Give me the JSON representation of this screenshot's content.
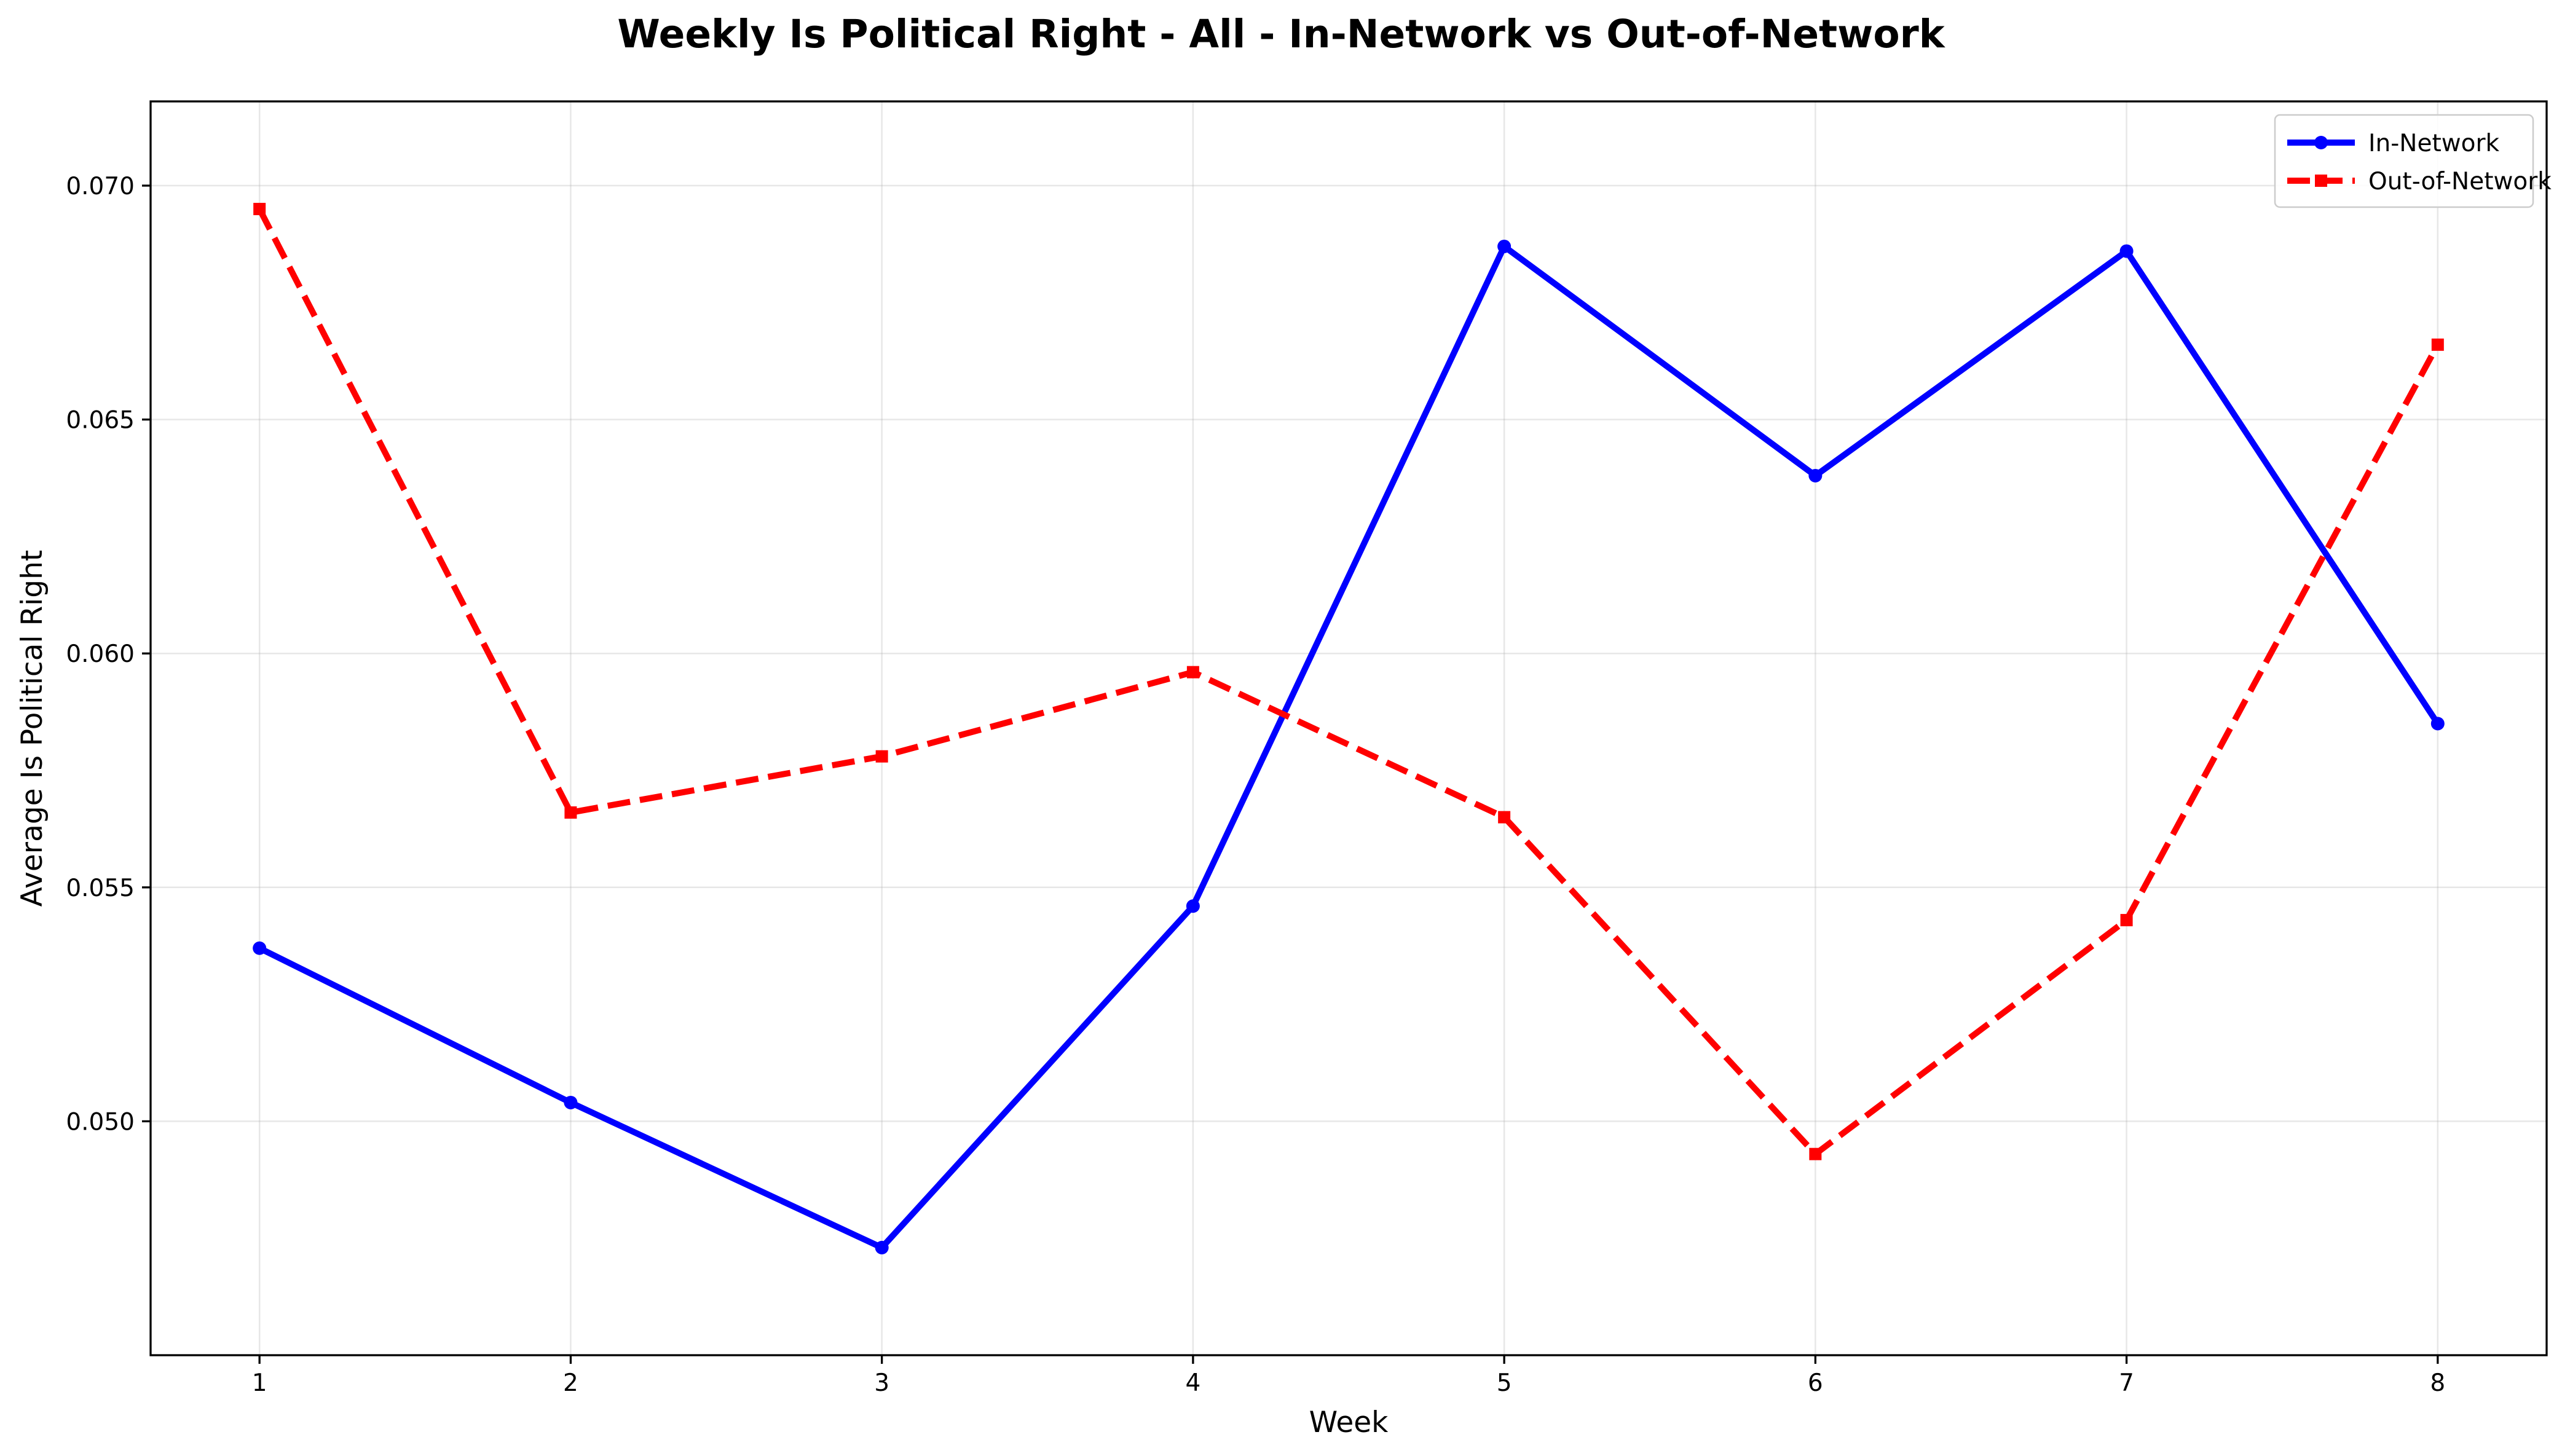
{
  "chart_data": {
    "type": "line",
    "title": "Weekly Is Political Right - All - In-Network vs Out-of-Network",
    "xlabel": "Week",
    "ylabel": "Average Is Political Right",
    "x": [
      1,
      2,
      3,
      4,
      5,
      6,
      7,
      8
    ],
    "x_ticks": [
      "1",
      "2",
      "3",
      "4",
      "5",
      "6",
      "7",
      "8"
    ],
    "y_ticks": [
      "0.050",
      "0.055",
      "0.060",
      "0.065",
      "0.070"
    ],
    "xlim": [
      0.65,
      8.35
    ],
    "ylim": [
      0.045,
      0.0718
    ],
    "grid": true,
    "legend_position": "upper right",
    "series": [
      {
        "name": "In-Network",
        "color": "#0000ff",
        "line_style": "solid",
        "marker": "circle",
        "values": [
          0.0537,
          0.0504,
          0.0473,
          0.0546,
          0.0687,
          0.0638,
          0.0686,
          0.0585
        ]
      },
      {
        "name": "Out-of-Network",
        "color": "#ff0000",
        "line_style": "dashed",
        "marker": "square",
        "values": [
          0.0695,
          0.0566,
          0.0578,
          0.0596,
          0.0565,
          0.0493,
          0.0543,
          0.0666
        ]
      }
    ]
  }
}
